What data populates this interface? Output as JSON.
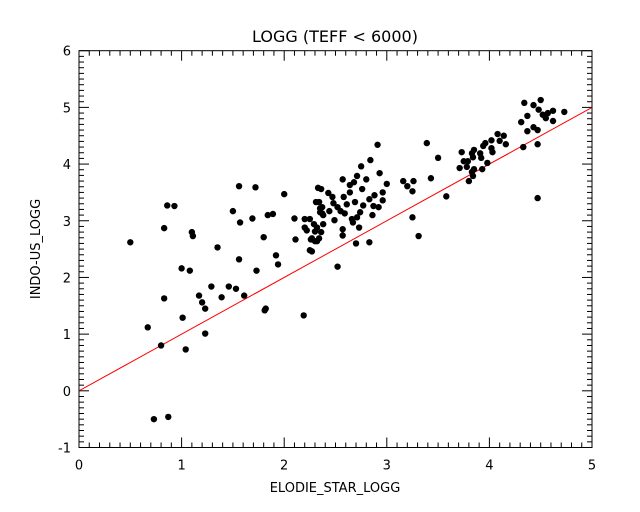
{
  "chart_data": {
    "type": "scatter",
    "title": "LOGG (TEFF < 6000)",
    "xlabel": "ELODIE_STAR_LOGG",
    "ylabel": "INDO-US_LOGG",
    "xlim": [
      0,
      5
    ],
    "ylim": [
      -1,
      6
    ],
    "xticks": [
      "0",
      "1",
      "2",
      "3",
      "4",
      "5"
    ],
    "yticks": [
      "-1",
      "0",
      "1",
      "2",
      "3",
      "4",
      "5",
      "6"
    ],
    "grid": false,
    "reference_line": {
      "name": "y = x",
      "from": [
        0,
        0
      ],
      "to": [
        5,
        5
      ],
      "color": "#ff0000"
    },
    "marker_color": "#000000",
    "points": [
      [
        0.5,
        2.62
      ],
      [
        0.67,
        1.12
      ],
      [
        0.73,
        -0.5
      ],
      [
        0.8,
        0.8
      ],
      [
        0.83,
        1.63
      ],
      [
        0.83,
        2.87
      ],
      [
        0.86,
        3.27
      ],
      [
        0.87,
        -0.46
      ],
      [
        0.93,
        3.26
      ],
      [
        1.0,
        2.16
      ],
      [
        1.01,
        1.29
      ],
      [
        1.04,
        0.73
      ],
      [
        1.08,
        2.12
      ],
      [
        1.1,
        2.8
      ],
      [
        1.11,
        2.73
      ],
      [
        1.17,
        1.68
      ],
      [
        1.2,
        1.56
      ],
      [
        1.23,
        1.01
      ],
      [
        1.23,
        1.45
      ],
      [
        1.29,
        1.84
      ],
      [
        1.35,
        2.53
      ],
      [
        1.39,
        1.65
      ],
      [
        1.46,
        1.84
      ],
      [
        1.5,
        3.17
      ],
      [
        1.53,
        1.8
      ],
      [
        1.56,
        2.32
      ],
      [
        1.56,
        3.61
      ],
      [
        1.57,
        2.97
      ],
      [
        1.61,
        1.68
      ],
      [
        1.72,
        3.59
      ],
      [
        1.73,
        2.12
      ],
      [
        1.69,
        3.04
      ],
      [
        1.82,
        1.45
      ],
      [
        1.84,
        3.1
      ],
      [
        1.8,
        2.71
      ],
      [
        1.81,
        1.42
      ],
      [
        1.89,
        3.12
      ],
      [
        1.92,
        2.39
      ],
      [
        1.94,
        2.23
      ],
      [
        2.0,
        3.47
      ],
      [
        2.1,
        3.04
      ],
      [
        2.11,
        2.67
      ],
      [
        2.19,
        1.33
      ],
      [
        2.2,
        3.03
      ],
      [
        2.25,
        3.03
      ],
      [
        2.2,
        2.88
      ],
      [
        2.25,
        2.48
      ],
      [
        2.27,
        2.69
      ],
      [
        2.29,
        2.94
      ],
      [
        2.32,
        2.64
      ],
      [
        2.31,
        3.33
      ],
      [
        2.33,
        3.58
      ],
      [
        2.35,
        3.22
      ],
      [
        2.36,
        2.8
      ],
      [
        2.37,
        3.13
      ],
      [
        2.91,
        4.34
      ],
      [
        3.39,
        4.37
      ],
      [
        3.5,
        4.11
      ],
      [
        2.84,
        4.07
      ],
      [
        2.75,
        3.96
      ],
      [
        2.93,
        3.84
      ],
      [
        2.71,
        3.79
      ],
      [
        2.57,
        3.73
      ],
      [
        2.8,
        3.73
      ],
      [
        2.64,
        3.63
      ],
      [
        2.68,
        3.68
      ],
      [
        3.0,
        3.65
      ],
      [
        3.16,
        3.7
      ],
      [
        3.26,
        3.7
      ],
      [
        3.2,
        3.61
      ],
      [
        3.43,
        3.75
      ],
      [
        3.25,
        3.52
      ],
      [
        2.36,
        3.56
      ],
      [
        2.43,
        3.49
      ],
      [
        2.47,
        3.42
      ],
      [
        2.64,
        3.5
      ],
      [
        2.76,
        3.56
      ],
      [
        2.88,
        3.45
      ],
      [
        2.96,
        3.5
      ],
      [
        2.58,
        3.42
      ],
      [
        2.34,
        3.33
      ],
      [
        2.48,
        3.31
      ],
      [
        2.69,
        3.33
      ],
      [
        2.83,
        3.38
      ],
      [
        2.96,
        3.36
      ],
      [
        2.37,
        3.24
      ],
      [
        2.52,
        3.24
      ],
      [
        2.61,
        3.29
      ],
      [
        2.77,
        3.27
      ],
      [
        2.87,
        3.26
      ],
      [
        2.92,
        3.24
      ],
      [
        2.35,
        3.15
      ],
      [
        2.44,
        3.17
      ],
      [
        2.55,
        3.17
      ],
      [
        2.74,
        3.15
      ],
      [
        2.59,
        3.13
      ],
      [
        2.38,
        3.1
      ],
      [
        2.86,
        3.1
      ],
      [
        3.25,
        3.06
      ],
      [
        2.49,
        3.01
      ],
      [
        2.66,
        3.03
      ],
      [
        2.71,
        3.06
      ],
      [
        2.67,
        2.97
      ],
      [
        2.38,
        2.94
      ],
      [
        2.32,
        2.88
      ],
      [
        2.73,
        2.88
      ],
      [
        2.22,
        2.83
      ],
      [
        2.3,
        2.81
      ],
      [
        2.57,
        2.85
      ],
      [
        2.57,
        2.74
      ],
      [
        3.31,
        2.73
      ],
      [
        2.26,
        2.67
      ],
      [
        2.34,
        2.69
      ],
      [
        2.3,
        2.64
      ],
      [
        2.7,
        2.6
      ],
      [
        2.83,
        2.62
      ],
      [
        2.27,
        2.46
      ],
      [
        2.52,
        2.19
      ],
      [
        3.58,
        3.43
      ],
      [
        4.34,
        5.08
      ],
      [
        4.43,
        5.04
      ],
      [
        4.5,
        5.13
      ],
      [
        4.48,
        4.96
      ],
      [
        4.37,
        4.85
      ],
      [
        4.31,
        4.74
      ],
      [
        4.52,
        4.87
      ],
      [
        4.57,
        4.9
      ],
      [
        4.62,
        4.94
      ],
      [
        4.73,
        4.92
      ],
      [
        4.62,
        4.76
      ],
      [
        4.55,
        4.81
      ],
      [
        4.37,
        4.58
      ],
      [
        4.43,
        4.65
      ],
      [
        4.47,
        4.6
      ],
      [
        4.08,
        4.53
      ],
      [
        4.14,
        4.5
      ],
      [
        4.02,
        4.42
      ],
      [
        4.1,
        4.41
      ],
      [
        4.16,
        4.35
      ],
      [
        3.96,
        4.37
      ],
      [
        4.33,
        4.3
      ],
      [
        4.47,
        4.35
      ],
      [
        4.02,
        4.28
      ],
      [
        3.94,
        4.32
      ],
      [
        4.03,
        4.21
      ],
      [
        3.85,
        4.25
      ],
      [
        3.91,
        4.19
      ],
      [
        3.73,
        4.21
      ],
      [
        3.83,
        4.19
      ],
      [
        3.92,
        4.11
      ],
      [
        3.84,
        4.12
      ],
      [
        3.75,
        4.05
      ],
      [
        3.79,
        4.05
      ],
      [
        3.98,
        4.02
      ],
      [
        3.78,
        3.95
      ],
      [
        3.71,
        3.93
      ],
      [
        3.85,
        3.91
      ],
      [
        3.93,
        3.91
      ],
      [
        3.83,
        3.86
      ],
      [
        3.84,
        3.79
      ],
      [
        3.8,
        3.7
      ],
      [
        4.47,
        3.4
      ]
    ]
  }
}
